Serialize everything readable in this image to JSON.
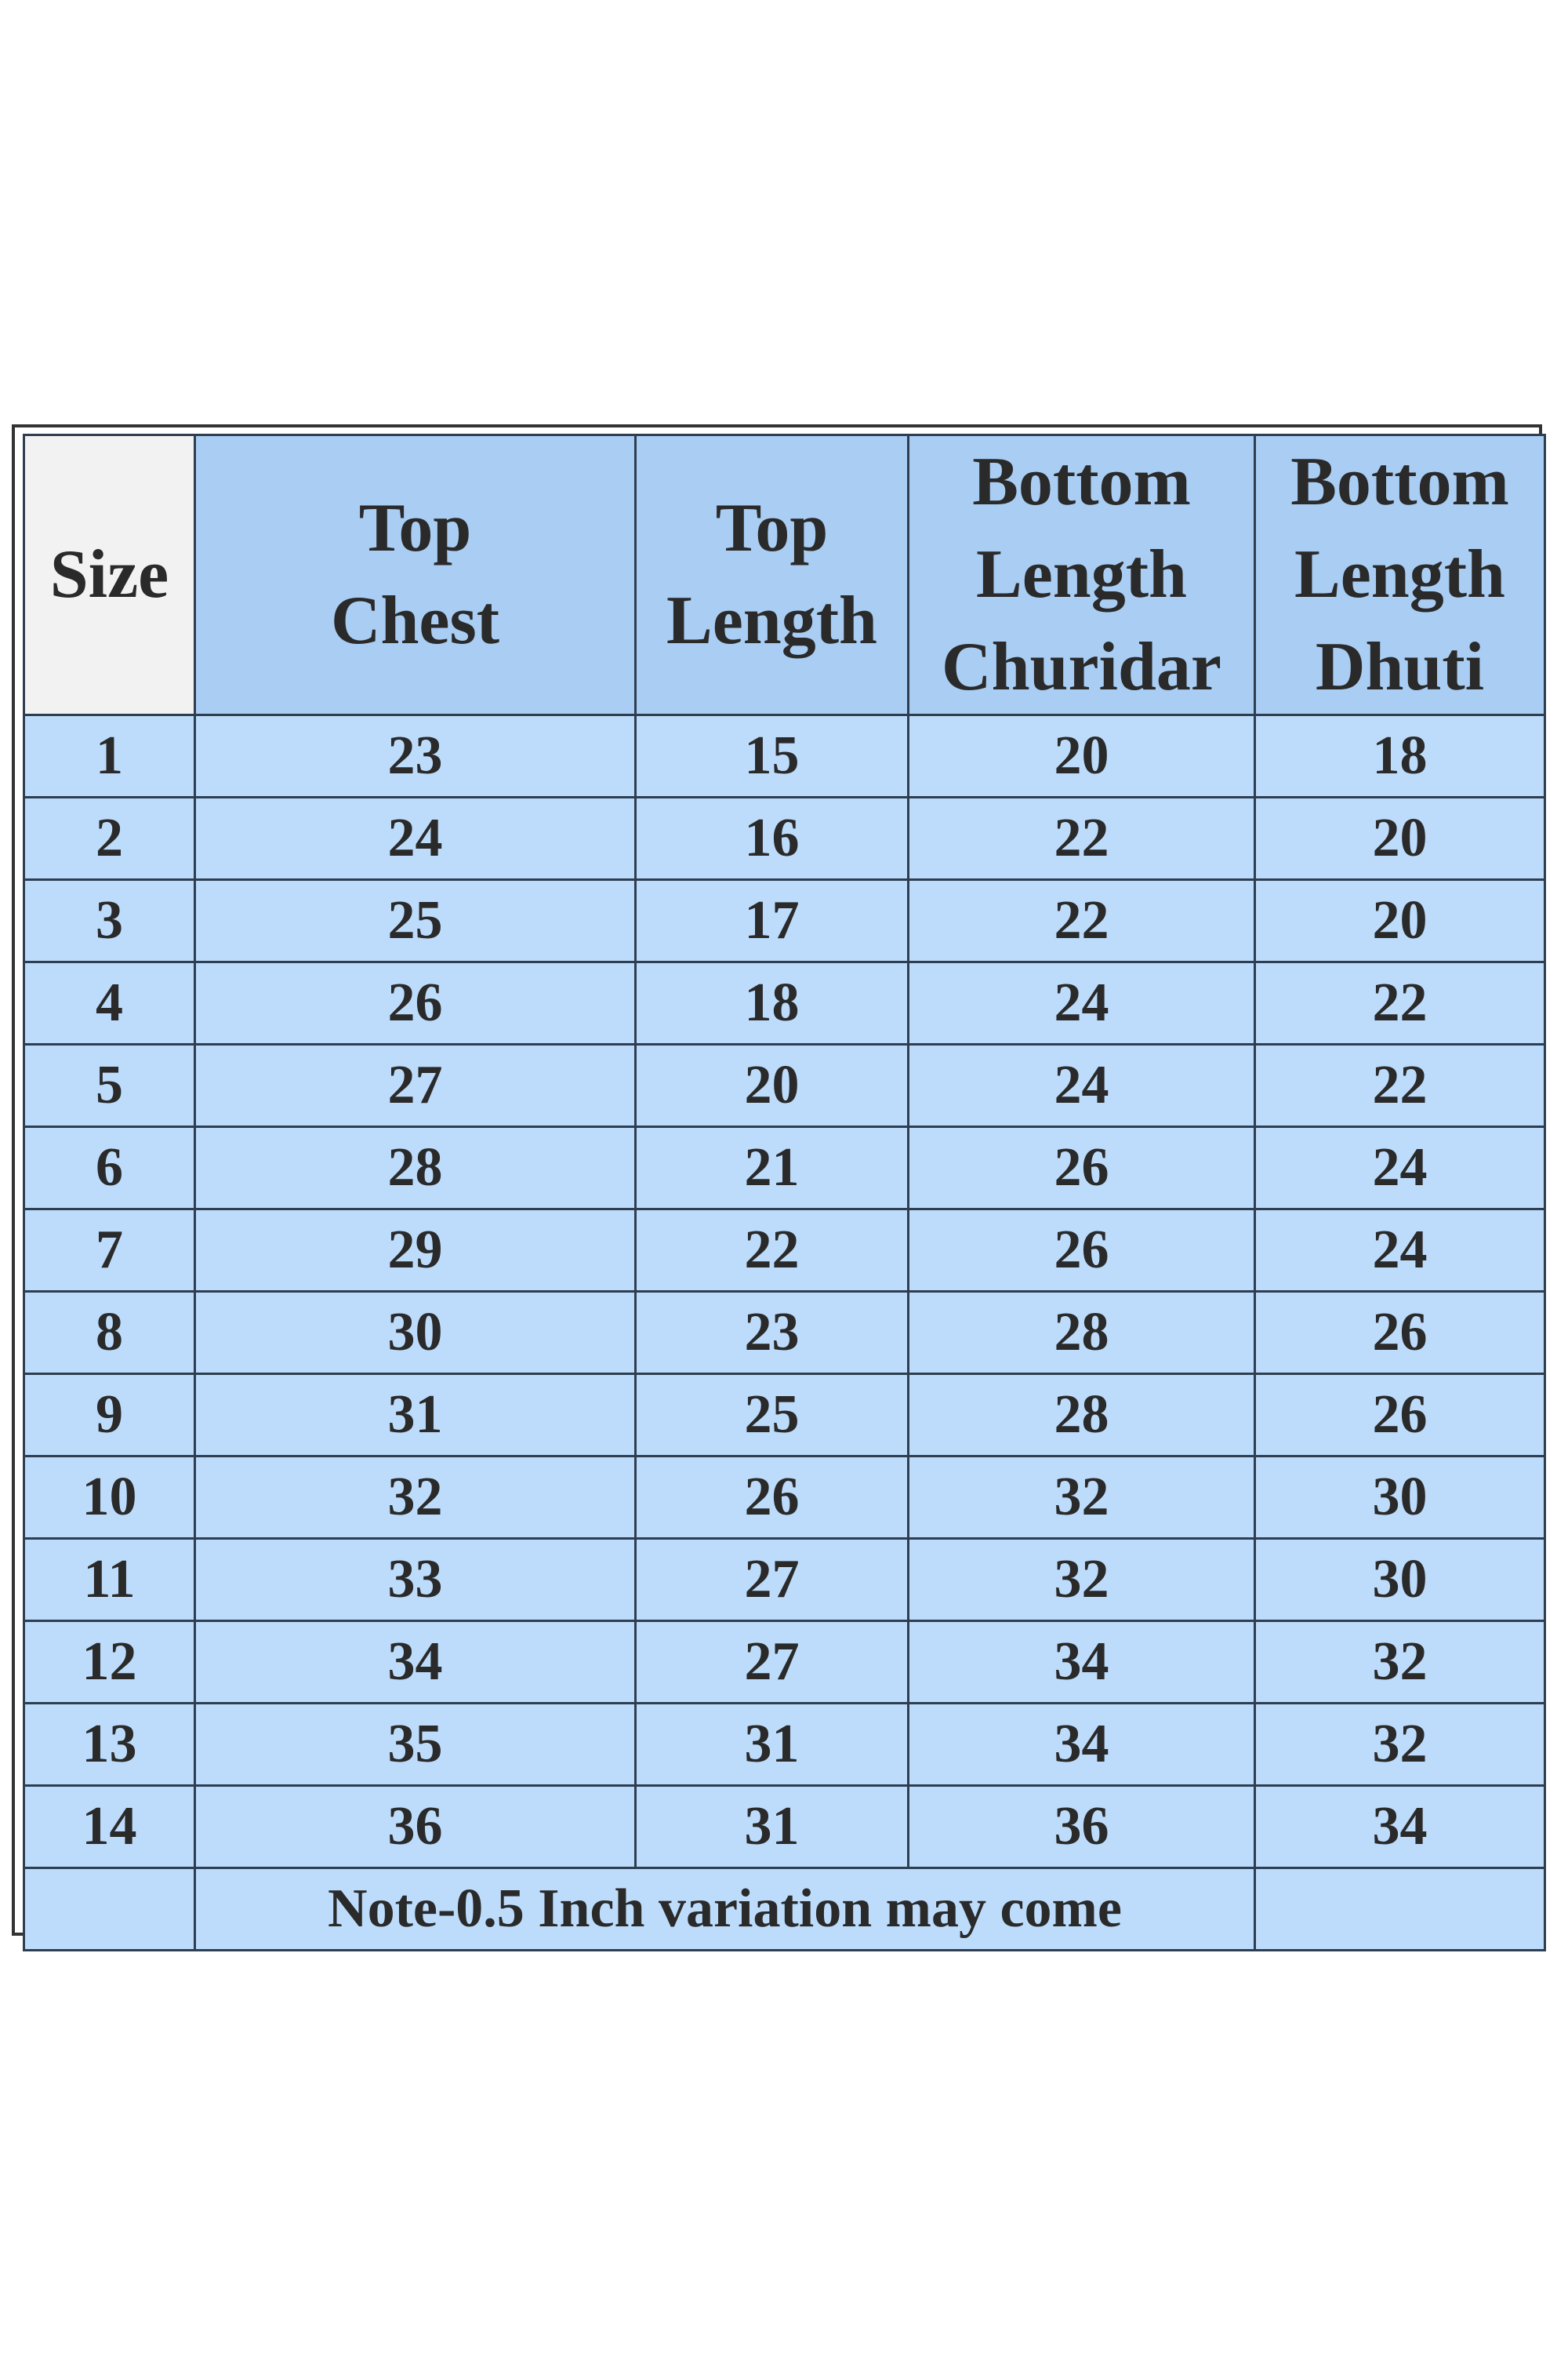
{
  "table": {
    "headers": [
      [
        "Size"
      ],
      [
        "Top",
        "Chest"
      ],
      [
        "Top",
        "Length"
      ],
      [
        "Bottom",
        "Length",
        "Churidar"
      ],
      [
        "Bottom",
        "Length",
        "Dhuti"
      ]
    ],
    "rows": [
      [
        1,
        23,
        15,
        20,
        18
      ],
      [
        2,
        24,
        16,
        22,
        20
      ],
      [
        3,
        25,
        17,
        22,
        20
      ],
      [
        4,
        26,
        18,
        24,
        22
      ],
      [
        5,
        27,
        20,
        24,
        22
      ],
      [
        6,
        28,
        21,
        26,
        24
      ],
      [
        7,
        29,
        22,
        26,
        24
      ],
      [
        8,
        30,
        23,
        28,
        26
      ],
      [
        9,
        31,
        25,
        28,
        26
      ],
      [
        10,
        32,
        26,
        32,
        30
      ],
      [
        11,
        33,
        27,
        32,
        30
      ],
      [
        12,
        34,
        27,
        34,
        32
      ],
      [
        13,
        35,
        31,
        34,
        32
      ],
      [
        14,
        36,
        31,
        36,
        34
      ]
    ],
    "note": "Note-0.5 Inch variation may come"
  }
}
